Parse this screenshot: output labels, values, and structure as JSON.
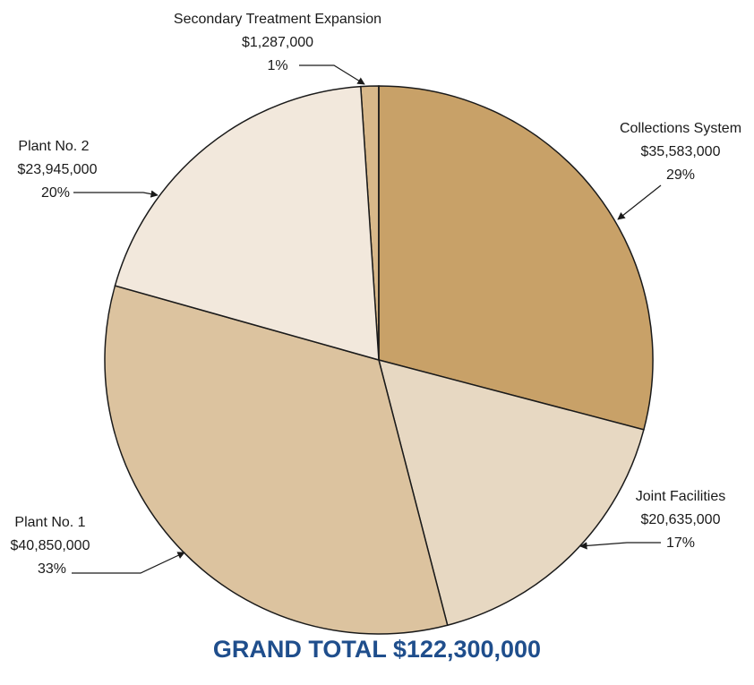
{
  "chart_data": {
    "type": "pie",
    "slices": [
      {
        "label": "Secondary Treatment Expansion",
        "value": 1287000,
        "amount": "$1,287,000",
        "percent": "1%",
        "color": "#d8b88a"
      },
      {
        "label": "Collections System",
        "value": 35583000,
        "amount": "$35,583,000",
        "percent": "29%",
        "color": "#c8a168"
      },
      {
        "label": "Joint Facilities",
        "value": 20635000,
        "amount": "$20,635,000",
        "percent": "17%",
        "color": "#e7d8c2"
      },
      {
        "label": "Plant No. 1",
        "value": 40850000,
        "amount": "$40,850,000",
        "percent": "33%",
        "color": "#dcc39f"
      },
      {
        "label": "Plant No. 2",
        "value": 23945000,
        "amount": "$23,945,000",
        "percent": "20%",
        "color": "#f2e8dc"
      }
    ]
  },
  "footer": {
    "grand_total": "GRAND TOTAL $122,300,000"
  }
}
